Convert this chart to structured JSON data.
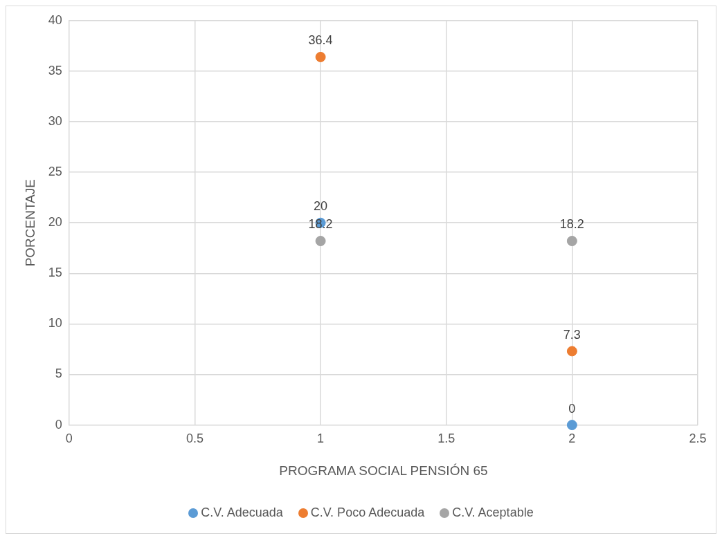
{
  "chart_data": {
    "type": "scatter",
    "xlabel": "PROGRAMA SOCIAL PENSIÓN 65",
    "ylabel": "PORCENTAJE",
    "x": [
      1,
      2
    ],
    "xlim": [
      0,
      2.5
    ],
    "xticks": [
      0,
      0.5,
      1,
      1.5,
      2,
      2.5
    ],
    "ylim": [
      0,
      40
    ],
    "yticks": [
      0,
      5,
      10,
      15,
      20,
      25,
      30,
      35,
      40
    ],
    "grid": true,
    "legend": "bottom",
    "marker": "circle",
    "data_labels": true,
    "series": [
      {
        "name": "C.V. Adecuada",
        "color": "#5b9bd5",
        "values": [
          20,
          0
        ]
      },
      {
        "name": "C.V. Poco Adecuada",
        "color": "#ed7d31",
        "values": [
          36.4,
          7.3
        ]
      },
      {
        "name": "C.V. Aceptable",
        "color": "#a5a5a5",
        "values": [
          18.2,
          18.2
        ]
      }
    ]
  }
}
